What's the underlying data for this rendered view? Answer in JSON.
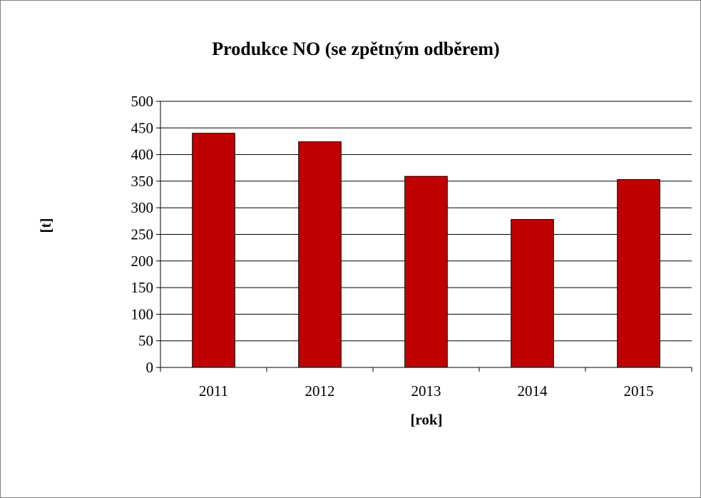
{
  "chart_data": {
    "type": "bar",
    "title": "Produkce NO (se zpětným odběrem)",
    "xlabel": "[rok]",
    "ylabel": "[t]",
    "categories": [
      "2011",
      "2012",
      "2013",
      "2014",
      "2015"
    ],
    "values": [
      440,
      424,
      359,
      278,
      353
    ],
    "ylim": [
      0,
      500
    ],
    "yticks": [
      "0",
      "50",
      "100",
      "150",
      "200",
      "250",
      "300",
      "350",
      "400",
      "450",
      "500"
    ],
    "grid": true,
    "legend": "none",
    "bar_color": "#c00000",
    "bar_outline_color": "#000000",
    "gridline_color": "#000000"
  }
}
